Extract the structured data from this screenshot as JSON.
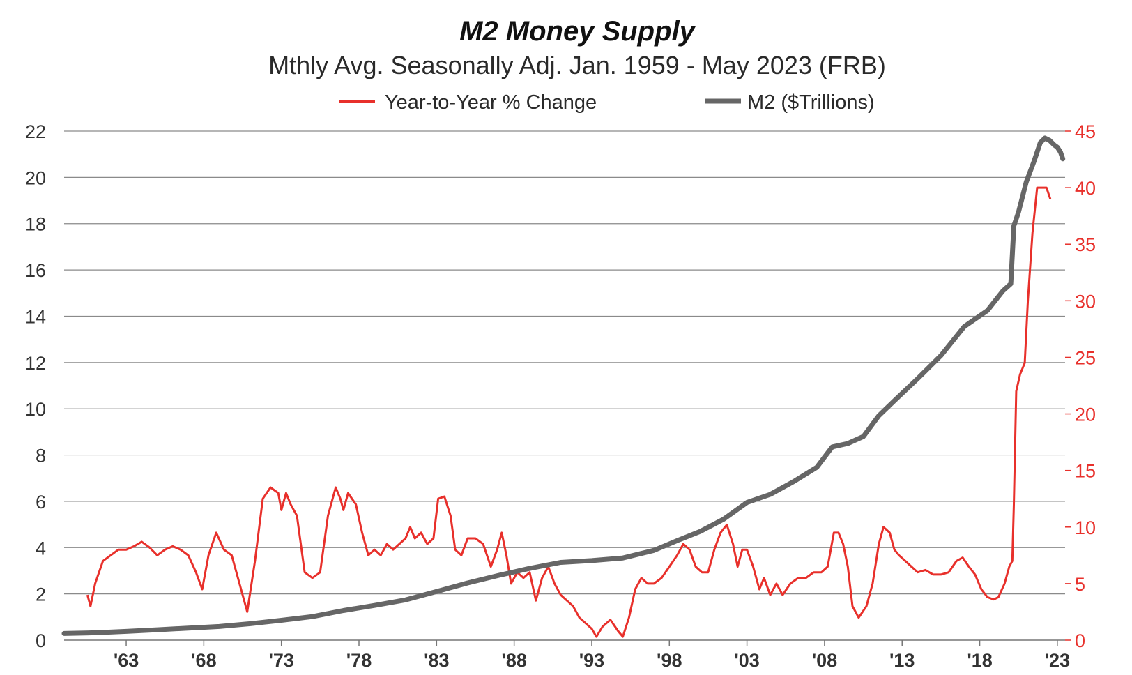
{
  "chart_data": {
    "type": "line",
    "title": "M2 Money Supply",
    "subtitle": "Mthly Avg. Seasonally Adj. Jan. 1959 - May 2023  (FRB)",
    "legend_placement": "top-center",
    "grid": true,
    "colors": {
      "yoy": "#e8302b",
      "m2": "#666666",
      "grid": "#8a8a8a",
      "axis": "#777777"
    },
    "x_ticks": [
      {
        "year": 1963,
        "label": "'63"
      },
      {
        "year": 1968,
        "label": "'68"
      },
      {
        "year": 1973,
        "label": "'73"
      },
      {
        "year": 1978,
        "label": "'78"
      },
      {
        "year": 1983,
        "label": "'83"
      },
      {
        "year": 1988,
        "label": "'88"
      },
      {
        "year": 1993,
        "label": "'93"
      },
      {
        "year": 1998,
        "label": "'98"
      },
      {
        "year": 2003,
        "label": "'03"
      },
      {
        "year": 2008,
        "label": "'08"
      },
      {
        "year": 2013,
        "label": "'13"
      },
      {
        "year": 2018,
        "label": "'18"
      },
      {
        "year": 2023,
        "label": "'23"
      }
    ],
    "xlim": [
      1959,
      2023.5
    ],
    "y_left": {
      "lim": [
        0,
        22
      ],
      "ticks": [
        "0",
        "2",
        "4",
        "6",
        "8",
        "10",
        "12",
        "14",
        "16",
        "18",
        "20",
        "22"
      ]
    },
    "y_right": {
      "lim": [
        0,
        45
      ],
      "ticks": [
        "0",
        "5",
        "10",
        "15",
        "20",
        "25",
        "30",
        "35",
        "40",
        "45"
      ]
    },
    "series": [
      {
        "name": "Year-to-Year % Change",
        "axis": "right",
        "points": [
          [
            1960.5,
            4.0
          ],
          [
            1960.7,
            3.0
          ],
          [
            1961.0,
            5.0
          ],
          [
            1961.5,
            7.0
          ],
          [
            1962.0,
            7.5
          ],
          [
            1962.5,
            8.0
          ],
          [
            1963.0,
            8.0
          ],
          [
            1963.5,
            8.3
          ],
          [
            1964.0,
            8.7
          ],
          [
            1964.5,
            8.2
          ],
          [
            1965.0,
            7.5
          ],
          [
            1965.5,
            8.0
          ],
          [
            1966.0,
            8.3
          ],
          [
            1966.5,
            8.0
          ],
          [
            1967.0,
            7.5
          ],
          [
            1967.5,
            6.0
          ],
          [
            1967.9,
            4.5
          ],
          [
            1968.3,
            7.5
          ],
          [
            1968.8,
            9.5
          ],
          [
            1969.3,
            8.0
          ],
          [
            1969.8,
            7.5
          ],
          [
            1970.3,
            5.0
          ],
          [
            1970.8,
            2.5
          ],
          [
            1971.3,
            7.0
          ],
          [
            1971.8,
            12.5
          ],
          [
            1972.3,
            13.5
          ],
          [
            1972.8,
            13.0
          ],
          [
            1973.0,
            11.5
          ],
          [
            1973.3,
            13.0
          ],
          [
            1973.6,
            12.0
          ],
          [
            1974.0,
            11.0
          ],
          [
            1974.5,
            6.0
          ],
          [
            1975.0,
            5.5
          ],
          [
            1975.5,
            6.0
          ],
          [
            1976.0,
            11.0
          ],
          [
            1976.5,
            13.5
          ],
          [
            1976.8,
            12.5
          ],
          [
            1977.0,
            11.5
          ],
          [
            1977.3,
            13.0
          ],
          [
            1977.8,
            12.0
          ],
          [
            1978.2,
            9.5
          ],
          [
            1978.6,
            7.5
          ],
          [
            1979.0,
            8.0
          ],
          [
            1979.4,
            7.5
          ],
          [
            1979.8,
            8.5
          ],
          [
            1980.2,
            8.0
          ],
          [
            1980.6,
            8.5
          ],
          [
            1981.0,
            9.0
          ],
          [
            1981.3,
            10.0
          ],
          [
            1981.6,
            9.0
          ],
          [
            1982.0,
            9.5
          ],
          [
            1982.4,
            8.5
          ],
          [
            1982.8,
            9.0
          ],
          [
            1983.1,
            12.5
          ],
          [
            1983.5,
            12.7
          ],
          [
            1983.9,
            11.0
          ],
          [
            1984.2,
            8.0
          ],
          [
            1984.6,
            7.5
          ],
          [
            1985.0,
            9.0
          ],
          [
            1985.5,
            9.0
          ],
          [
            1986.0,
            8.5
          ],
          [
            1986.5,
            6.5
          ],
          [
            1986.9,
            8.0
          ],
          [
            1987.2,
            9.5
          ],
          [
            1987.5,
            7.5
          ],
          [
            1987.8,
            5.0
          ],
          [
            1988.2,
            6.0
          ],
          [
            1988.6,
            5.5
          ],
          [
            1989.0,
            6.0
          ],
          [
            1989.4,
            3.5
          ],
          [
            1989.8,
            5.5
          ],
          [
            1990.2,
            6.5
          ],
          [
            1990.6,
            5.0
          ],
          [
            1991.0,
            4.0
          ],
          [
            1991.4,
            3.5
          ],
          [
            1991.8,
            3.0
          ],
          [
            1992.2,
            2.0
          ],
          [
            1992.6,
            1.5
          ],
          [
            1993.0,
            1.0
          ],
          [
            1993.3,
            0.3
          ],
          [
            1993.7,
            1.2
          ],
          [
            1994.2,
            1.8
          ],
          [
            1994.7,
            0.8
          ],
          [
            1995.0,
            0.3
          ],
          [
            1995.4,
            2.0
          ],
          [
            1995.8,
            4.5
          ],
          [
            1996.2,
            5.5
          ],
          [
            1996.6,
            5.0
          ],
          [
            1997.0,
            5.0
          ],
          [
            1997.5,
            5.5
          ],
          [
            1998.0,
            6.5
          ],
          [
            1998.5,
            7.5
          ],
          [
            1998.9,
            8.5
          ],
          [
            1999.3,
            8.0
          ],
          [
            1999.7,
            6.5
          ],
          [
            2000.1,
            6.0
          ],
          [
            2000.5,
            6.0
          ],
          [
            2000.9,
            8.0
          ],
          [
            2001.3,
            9.5
          ],
          [
            2001.7,
            10.2
          ],
          [
            2002.1,
            8.5
          ],
          [
            2002.4,
            6.5
          ],
          [
            2002.7,
            8.0
          ],
          [
            2003.0,
            8.0
          ],
          [
            2003.4,
            6.5
          ],
          [
            2003.8,
            4.5
          ],
          [
            2004.1,
            5.5
          ],
          [
            2004.5,
            4.0
          ],
          [
            2004.9,
            5.0
          ],
          [
            2005.3,
            4.0
          ],
          [
            2005.8,
            5.0
          ],
          [
            2006.3,
            5.5
          ],
          [
            2006.8,
            5.5
          ],
          [
            2007.3,
            6.0
          ],
          [
            2007.8,
            6.0
          ],
          [
            2008.2,
            6.5
          ],
          [
            2008.6,
            9.5
          ],
          [
            2008.9,
            9.5
          ],
          [
            2009.2,
            8.5
          ],
          [
            2009.5,
            6.5
          ],
          [
            2009.8,
            3.0
          ],
          [
            2010.2,
            2.0
          ],
          [
            2010.7,
            3.0
          ],
          [
            2011.1,
            5.0
          ],
          [
            2011.5,
            8.5
          ],
          [
            2011.8,
            10.0
          ],
          [
            2012.2,
            9.5
          ],
          [
            2012.5,
            8.0
          ],
          [
            2012.8,
            7.5
          ],
          [
            2013.2,
            7.0
          ],
          [
            2013.6,
            6.5
          ],
          [
            2014.0,
            6.0
          ],
          [
            2014.5,
            6.2
          ],
          [
            2015.0,
            5.8
          ],
          [
            2015.5,
            5.8
          ],
          [
            2016.0,
            6.0
          ],
          [
            2016.5,
            7.0
          ],
          [
            2016.9,
            7.3
          ],
          [
            2017.3,
            6.5
          ],
          [
            2017.7,
            5.8
          ],
          [
            2018.1,
            4.5
          ],
          [
            2018.5,
            3.8
          ],
          [
            2018.9,
            3.6
          ],
          [
            2019.2,
            3.8
          ],
          [
            2019.6,
            5.0
          ],
          [
            2019.9,
            6.5
          ],
          [
            2020.1,
            7.0
          ],
          [
            2020.2,
            12.0
          ],
          [
            2020.35,
            22.0
          ],
          [
            2020.6,
            23.5
          ],
          [
            2020.9,
            24.5
          ],
          [
            2021.1,
            30.0
          ],
          [
            2021.4,
            36.0
          ],
          [
            2021.7,
            40.0
          ],
          [
            2022.0,
            40.0
          ],
          [
            2022.3,
            40.0
          ],
          [
            2022.55,
            39.0
          ]
        ]
      },
      {
        "name": "M2 ($Trillions)",
        "axis": "left",
        "points": [
          [
            1959.0,
            0.29
          ],
          [
            1961.0,
            0.32
          ],
          [
            1963.0,
            0.38
          ],
          [
            1965.0,
            0.45
          ],
          [
            1967.0,
            0.52
          ],
          [
            1969.0,
            0.59
          ],
          [
            1971.0,
            0.71
          ],
          [
            1973.0,
            0.86
          ],
          [
            1975.0,
            1.02
          ],
          [
            1977.0,
            1.28
          ],
          [
            1979.0,
            1.5
          ],
          [
            1981.0,
            1.74
          ],
          [
            1983.0,
            2.1
          ],
          [
            1985.0,
            2.47
          ],
          [
            1987.0,
            2.8
          ],
          [
            1989.0,
            3.1
          ],
          [
            1991.0,
            3.36
          ],
          [
            1993.0,
            3.44
          ],
          [
            1995.0,
            3.55
          ],
          [
            1997.0,
            3.88
          ],
          [
            1998.5,
            4.3
          ],
          [
            2000.0,
            4.7
          ],
          [
            2001.5,
            5.23
          ],
          [
            2003.0,
            5.95
          ],
          [
            2004.5,
            6.3
          ],
          [
            2006.0,
            6.85
          ],
          [
            2007.5,
            7.47
          ],
          [
            2008.5,
            8.35
          ],
          [
            2009.5,
            8.5
          ],
          [
            2010.5,
            8.8
          ],
          [
            2011.5,
            9.7
          ],
          [
            2012.5,
            10.35
          ],
          [
            2014.0,
            11.3
          ],
          [
            2015.5,
            12.3
          ],
          [
            2017.0,
            13.55
          ],
          [
            2018.5,
            14.25
          ],
          [
            2019.5,
            15.1
          ],
          [
            2020.0,
            15.4
          ],
          [
            2020.2,
            17.9
          ],
          [
            2020.5,
            18.5
          ],
          [
            2021.0,
            19.8
          ],
          [
            2021.5,
            20.7
          ],
          [
            2021.9,
            21.5
          ],
          [
            2022.2,
            21.7
          ],
          [
            2022.5,
            21.6
          ],
          [
            2022.8,
            21.4
          ],
          [
            2023.0,
            21.3
          ],
          [
            2023.2,
            21.1
          ],
          [
            2023.35,
            20.8
          ]
        ]
      }
    ]
  }
}
